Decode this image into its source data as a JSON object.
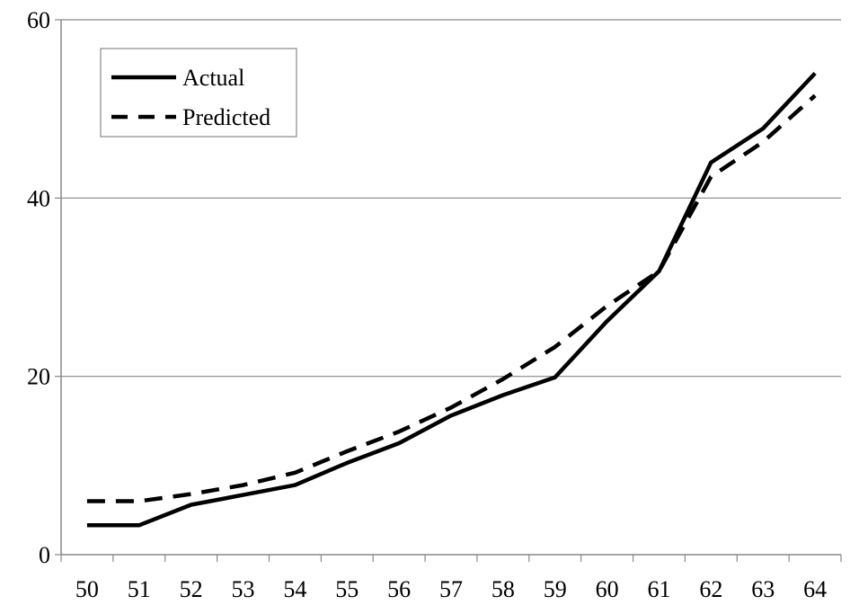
{
  "chart_data": {
    "type": "line",
    "title": "",
    "xlabel": "",
    "ylabel": "",
    "x": [
      "50",
      "51",
      "52",
      "53",
      "54",
      "55",
      "56",
      "57",
      "58",
      "59",
      "60",
      "61",
      "62",
      "63",
      "64"
    ],
    "ylim": [
      0,
      60
    ],
    "yticks": [
      "0",
      "20",
      "40",
      "60"
    ],
    "grid": "horizontal",
    "legend_position": "top-left",
    "series": [
      {
        "name": "Actual",
        "style": "solid",
        "color": "#000000",
        "values": [
          3.3,
          3.3,
          5.6,
          6.7,
          7.8,
          10.3,
          12.5,
          15.6,
          17.9,
          19.9,
          26.2,
          31.8,
          44.0,
          47.8,
          54.0
        ]
      },
      {
        "name": "Predicted",
        "style": "dashed",
        "color": "#000000",
        "values": [
          6.0,
          6.0,
          6.8,
          7.8,
          9.2,
          11.6,
          13.8,
          16.5,
          19.7,
          23.3,
          27.9,
          31.8,
          42.4,
          46.3,
          51.5
        ]
      }
    ]
  }
}
